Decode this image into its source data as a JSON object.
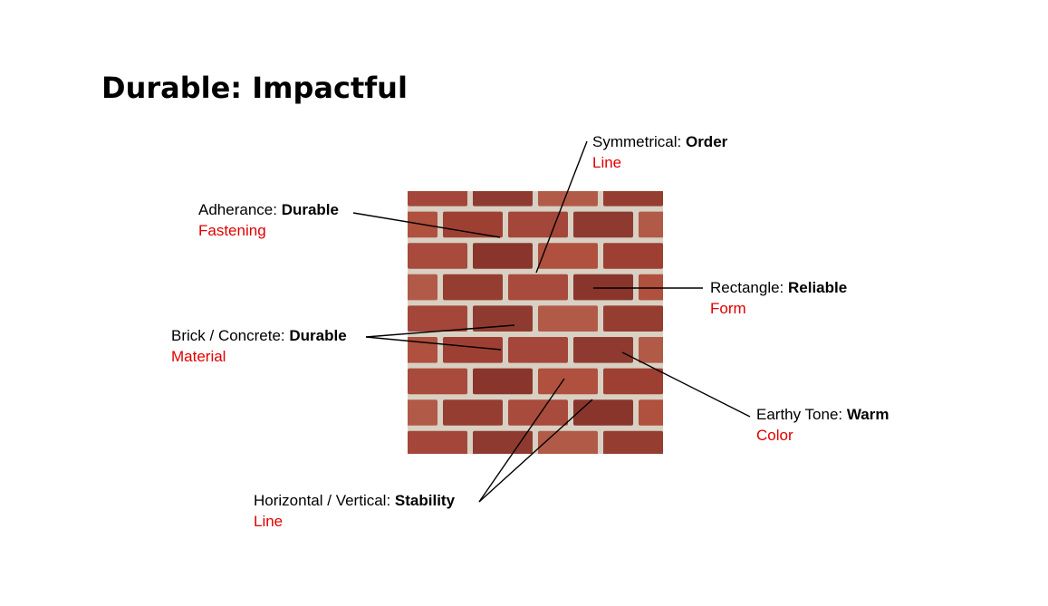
{
  "title": "Durable: Impactful",
  "callouts": {
    "symmetrical": {
      "term": "Symmetrical: ",
      "trait": "Order",
      "principle": "Line"
    },
    "adherance": {
      "term": "Adherance: ",
      "trait": "Durable",
      "principle": "Fastening"
    },
    "rectangle": {
      "term": "Rectangle: ",
      "trait": "Reliable",
      "principle": "Form"
    },
    "brick_concrete": {
      "term": "Brick / Concrete: ",
      "trait": "Durable",
      "principle": "Material"
    },
    "earthy_tone": {
      "term": "Earthy Tone: ",
      "trait": "Warm",
      "principle": "Color"
    },
    "horizontal_vertical": {
      "term": "Horizontal / Vertical: ",
      "trait": "Stability",
      "principle": "Line"
    }
  },
  "colors": {
    "principle_text": "#e00000",
    "mortar": "#d8d0c2",
    "brick": "#9e3f33"
  }
}
